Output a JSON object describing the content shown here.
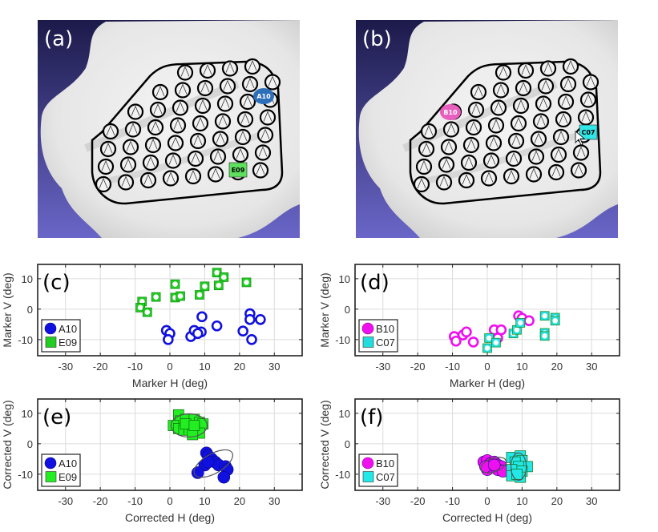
{
  "images": [
    {
      "panel_label": "(a)",
      "badges": [
        {
          "text": "A10",
          "shape": "ellipse",
          "color": "#2e6fba",
          "text_color": "#ffffff"
        },
        {
          "text": "E09",
          "shape": "rect",
          "color": "#5ee05e",
          "text_color": "#000000"
        }
      ]
    },
    {
      "panel_label": "(b)",
      "badges": [
        {
          "text": "B10",
          "shape": "ellipse",
          "color": "#e85fc0",
          "text_color": "#ffffff"
        },
        {
          "text": "C07",
          "shape": "rect",
          "color": "#33e6e6",
          "text_color": "#000000"
        }
      ]
    }
  ],
  "chart_data": [
    {
      "type": "scatter",
      "panel_label": "(c)",
      "title": "",
      "xlabel": "Marker H (deg)",
      "ylabel": "Marker V (deg)",
      "xlim": [
        -38,
        38
      ],
      "ylim": [
        -15.3,
        14.7
      ],
      "xticks": [
        -30,
        -20,
        -10,
        0,
        10,
        20,
        30
      ],
      "yticks": [
        -10,
        0,
        10
      ],
      "grid": true,
      "legend": "bottom-left",
      "series": [
        {
          "name": "A10",
          "marker": "circle",
          "filled": false,
          "color": "#1010e0",
          "points": [
            [
              -1,
              -7
            ],
            [
              0,
              -8
            ],
            [
              -0.5,
              -10
            ],
            [
              6,
              -9
            ],
            [
              7,
              -7
            ],
            [
              9,
              -7.5
            ],
            [
              8,
              -8
            ],
            [
              9.2,
              -2.5
            ],
            [
              13.5,
              -5.5
            ],
            [
              21,
              -7.2
            ],
            [
              23,
              -1.5
            ],
            [
              23,
              -3.4
            ],
            [
              26,
              -3.4
            ],
            [
              23.5,
              -10
            ]
          ]
        },
        {
          "name": "E09",
          "marker": "square",
          "filled": false,
          "color": "#22cc22",
          "points": [
            [
              -8,
              2.5
            ],
            [
              -8.5,
              0.5
            ],
            [
              -6.5,
              -1
            ],
            [
              -4,
              4
            ],
            [
              1.5,
              8.2
            ],
            [
              1.5,
              3.8
            ],
            [
              3,
              4.3
            ],
            [
              8.5,
              4.7
            ],
            [
              10,
              7.5
            ],
            [
              13.5,
              12
            ],
            [
              15.5,
              10.5
            ],
            [
              14,
              7.8
            ],
            [
              22,
              8.8
            ]
          ]
        }
      ]
    },
    {
      "type": "scatter",
      "panel_label": "(d)",
      "title": "",
      "xlabel": "Marker H (deg)",
      "ylabel": "Marker V (deg)",
      "xlim": [
        -38,
        38
      ],
      "ylim": [
        -15.3,
        14.7
      ],
      "xticks": [
        -30,
        -20,
        -10,
        0,
        10,
        20,
        30
      ],
      "yticks": [
        -10,
        0,
        10
      ],
      "grid": true,
      "legend": "bottom-left",
      "series": [
        {
          "name": "B10",
          "marker": "circle",
          "filled": false,
          "color": "#ee10ee",
          "points": [
            [
              -9.5,
              -9
            ],
            [
              -9,
              -10.5
            ],
            [
              -7,
              -8.5
            ],
            [
              -6,
              -7.5
            ],
            [
              -4,
              -10.8
            ],
            [
              2,
              -6.8
            ],
            [
              4,
              -6.8
            ],
            [
              3,
              -9.5
            ],
            [
              9,
              -2.2
            ],
            [
              10,
              -3
            ],
            [
              12,
              -3.8
            ]
          ]
        },
        {
          "name": "C07",
          "marker": "square",
          "filled": false,
          "color": "#22dddd",
          "points": [
            [
              0.5,
              -9.5
            ],
            [
              2.5,
              -11
            ],
            [
              0,
              -12.8
            ],
            [
              7.5,
              -8
            ],
            [
              8.5,
              -6.8
            ],
            [
              9.5,
              -4.5
            ],
            [
              16.5,
              -2.2
            ],
            [
              19.5,
              -2.8
            ],
            [
              19.5,
              -3.8
            ],
            [
              16.5,
              -7.8
            ],
            [
              16.5,
              -8.8
            ]
          ]
        }
      ]
    },
    {
      "type": "scatter",
      "panel_label": "(e)",
      "title": "",
      "xlabel": "Corrected H (deg)",
      "ylabel": "Corrected V (deg)",
      "xlim": [
        -38,
        38
      ],
      "ylim": [
        -15.3,
        14.7
      ],
      "xticks": [
        -30,
        -20,
        -10,
        0,
        10,
        20,
        30
      ],
      "yticks": [
        -10,
        0,
        10
      ],
      "grid": true,
      "legend": "bottom-left",
      "series": [
        {
          "name": "A10",
          "marker": "circle",
          "filled": true,
          "color": "#1010e0",
          "points": [
            [
              10.5,
              -3
            ],
            [
              11,
              -4
            ],
            [
              12,
              -5
            ],
            [
              13,
              -6
            ],
            [
              10,
              -7
            ],
            [
              14,
              -7
            ],
            [
              16,
              -7.5
            ],
            [
              16.5,
              -8.5
            ],
            [
              8,
              -9.5
            ],
            [
              15.5,
              -11
            ],
            [
              11,
              -6
            ]
          ],
          "ellipse": {
            "cx": 12.5,
            "cy": -6.5,
            "rx": 6.2,
            "ry": 3.2,
            "angle_deg": -30
          }
        },
        {
          "name": "E09",
          "marker": "square",
          "filled": true,
          "color": "#22ee22",
          "points": [
            [
              2.5,
              9.5
            ],
            [
              3,
              7.5
            ],
            [
              4.5,
              8
            ],
            [
              7,
              8
            ],
            [
              8.5,
              7
            ],
            [
              9.5,
              6.5
            ],
            [
              1,
              6
            ],
            [
              2.5,
              5
            ],
            [
              4,
              4.5
            ],
            [
              5.5,
              4.5
            ],
            [
              7,
              5
            ],
            [
              8.5,
              3.5
            ],
            [
              6.5,
              3
            ],
            [
              4.5,
              6.5
            ],
            [
              7,
              6
            ]
          ],
          "ellipse": {
            "cx": 5.5,
            "cy": 6,
            "rx": 5.2,
            "ry": 3.8,
            "angle_deg": 0
          }
        }
      ]
    },
    {
      "type": "scatter",
      "panel_label": "(f)",
      "title": "",
      "xlabel": "Corrected H (deg)",
      "ylabel": "Corrected V (deg)",
      "xlim": [
        -38,
        38
      ],
      "ylim": [
        -15.3,
        14.7
      ],
      "xticks": [
        -30,
        -20,
        -10,
        0,
        10,
        20,
        30
      ],
      "yticks": [
        -10,
        0,
        10
      ],
      "grid": true,
      "legend": "bottom-left",
      "series": [
        {
          "name": "B10",
          "marker": "circle",
          "filled": true,
          "color": "#ee10ee",
          "points": [
            [
              -1,
              -6
            ],
            [
              0,
              -5.5
            ],
            [
              1,
              -6.5
            ],
            [
              2,
              -6
            ],
            [
              3,
              -7
            ],
            [
              4,
              -7.5
            ],
            [
              0,
              -8.5
            ],
            [
              3,
              -8.5
            ],
            [
              4.5,
              -9
            ],
            [
              -0.5,
              -7.5
            ],
            [
              2,
              -7
            ]
          ],
          "ellipse": {
            "cx": 1.8,
            "cy": -7,
            "rx": 3.8,
            "ry": 2.2,
            "angle_deg": -20
          }
        },
        {
          "name": "C07",
          "marker": "square",
          "filled": true,
          "color": "#22e8e8",
          "points": [
            [
              7,
              -4.5
            ],
            [
              9.5,
              -4
            ],
            [
              10,
              -5.5
            ],
            [
              8,
              -6
            ],
            [
              11.5,
              -7.5
            ],
            [
              9,
              -7.5
            ],
            [
              7,
              -8.5
            ],
            [
              10,
              -9
            ],
            [
              7,
              -10.5
            ],
            [
              9.5,
              -11
            ],
            [
              8.5,
              -10
            ]
          ],
          "ellipse": {
            "cx": 9,
            "cy": -7.5,
            "rx": 2.2,
            "ry": 4.5,
            "angle_deg": 0
          }
        }
      ]
    }
  ]
}
